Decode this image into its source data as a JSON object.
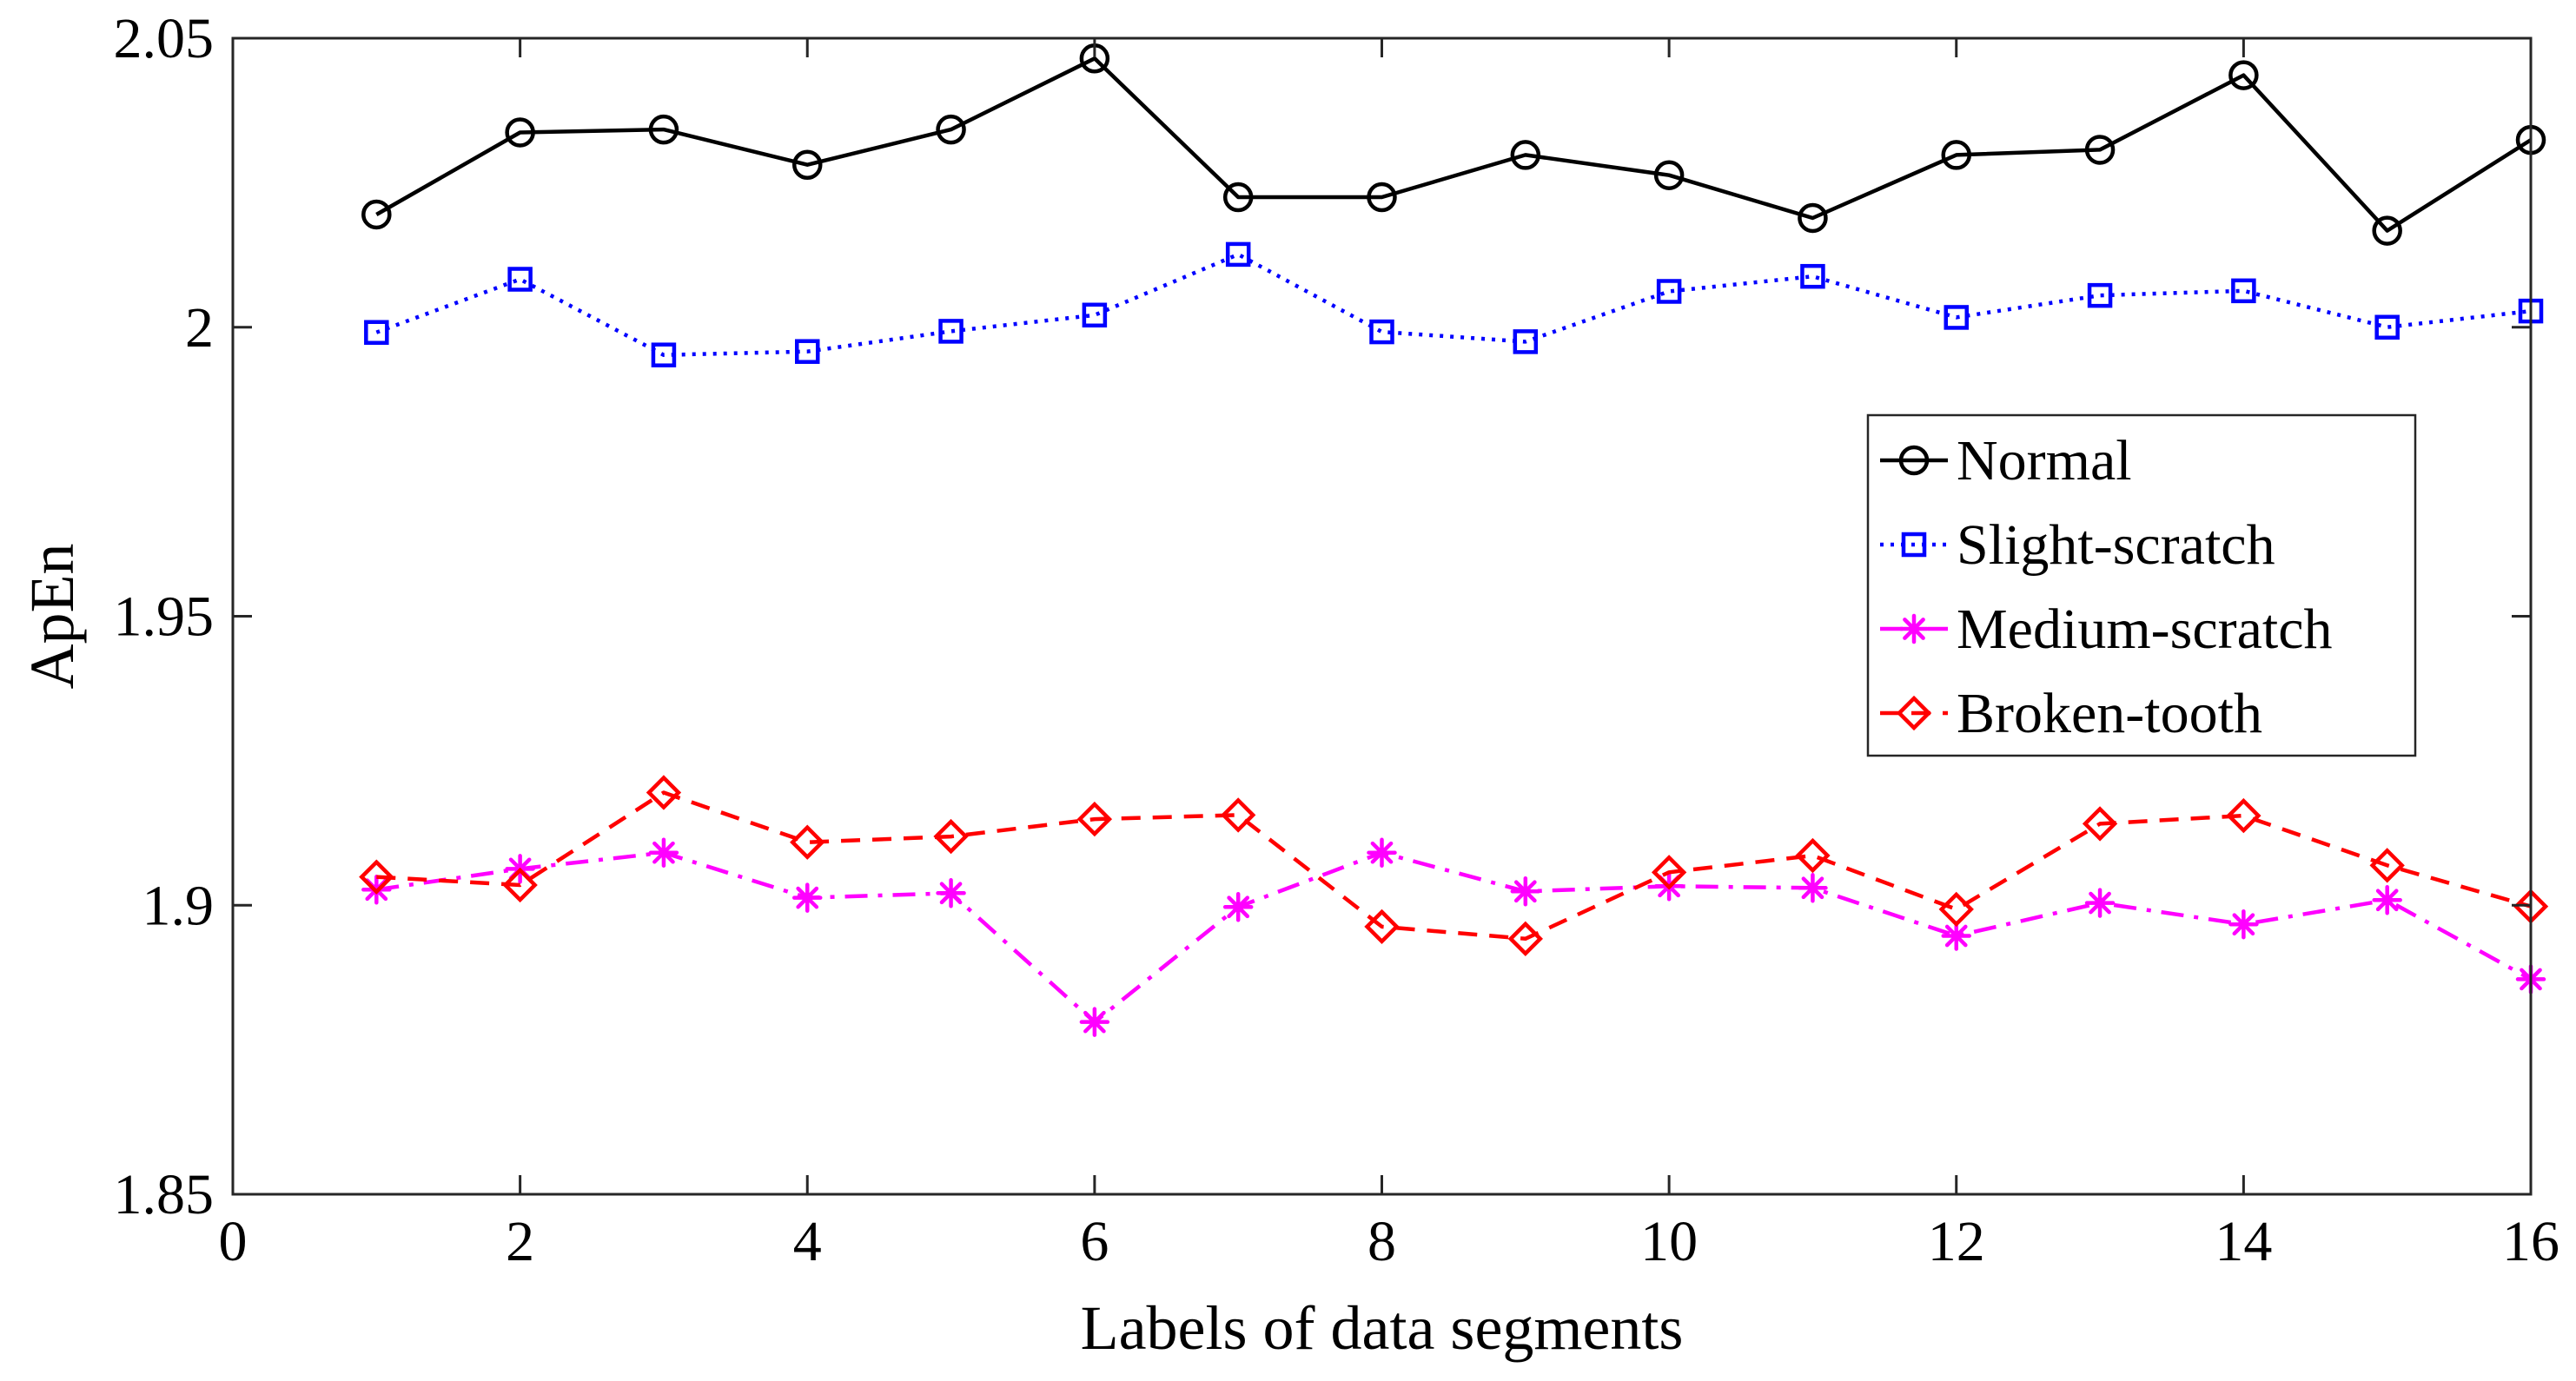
{
  "chart_data": {
    "type": "line",
    "title": "",
    "xlabel": "Labels of data segments",
    "ylabel": "ApEn",
    "xlim": [
      0,
      16
    ],
    "ylim": [
      1.85,
      2.05
    ],
    "xticks": [
      0,
      2,
      4,
      6,
      8,
      10,
      12,
      14,
      16
    ],
    "xtick_labels": [
      "0",
      "2",
      "4",
      "6",
      "8",
      "10",
      "12",
      "14",
      "16"
    ],
    "yticks": [
      1.85,
      1.9,
      1.95,
      2.0,
      2.05
    ],
    "ytick_labels": [
      "1.85",
      "1.9",
      "1.95",
      "2",
      "2.05"
    ],
    "grid": false,
    "legend_position": "right",
    "x": [
      1,
      2,
      3,
      4,
      5,
      6,
      7,
      8,
      9,
      10,
      11,
      12,
      13,
      14,
      15,
      16
    ],
    "series": [
      {
        "name": "Normal",
        "color": "#000000",
        "line_style": "solid",
        "marker": "circle",
        "values": [
          2.0195,
          2.0337,
          2.0342,
          2.0281,
          2.0342,
          2.0465,
          2.0225,
          2.0225,
          2.0298,
          2.0263,
          2.0189,
          2.0298,
          2.0307,
          2.0436,
          2.0167,
          2.0324
        ]
      },
      {
        "name": "Slight-scratch",
        "color": "#0000ff",
        "line_style": "dotted",
        "marker": "square",
        "values": [
          1.9991,
          2.0083,
          1.9952,
          1.9958,
          1.9993,
          2.0021,
          2.0126,
          1.9992,
          1.9975,
          2.0062,
          2.0088,
          2.0017,
          2.0055,
          2.0063,
          2.0,
          2.0028
        ]
      },
      {
        "name": "Medium-scratch",
        "color": "#ff00ff",
        "line_style": "dashdot",
        "marker": "asterisk",
        "values": [
          1.9027,
          1.9063,
          1.9091,
          1.9013,
          1.9021,
          1.8798,
          1.8997,
          1.9091,
          1.9024,
          1.9033,
          1.903,
          1.8947,
          1.9004,
          1.8967,
          1.9009,
          1.8872
        ]
      },
      {
        "name": "Broken-tooth",
        "color": "#ff0000",
        "line_style": "dashed",
        "marker": "diamond",
        "values": [
          1.9049,
          1.9035,
          1.9195,
          1.9109,
          1.9119,
          1.9149,
          1.9156,
          1.8963,
          1.8942,
          1.9057,
          1.9086,
          1.8993,
          1.9141,
          1.9155,
          1.9069,
          1.8998
        ]
      }
    ]
  }
}
